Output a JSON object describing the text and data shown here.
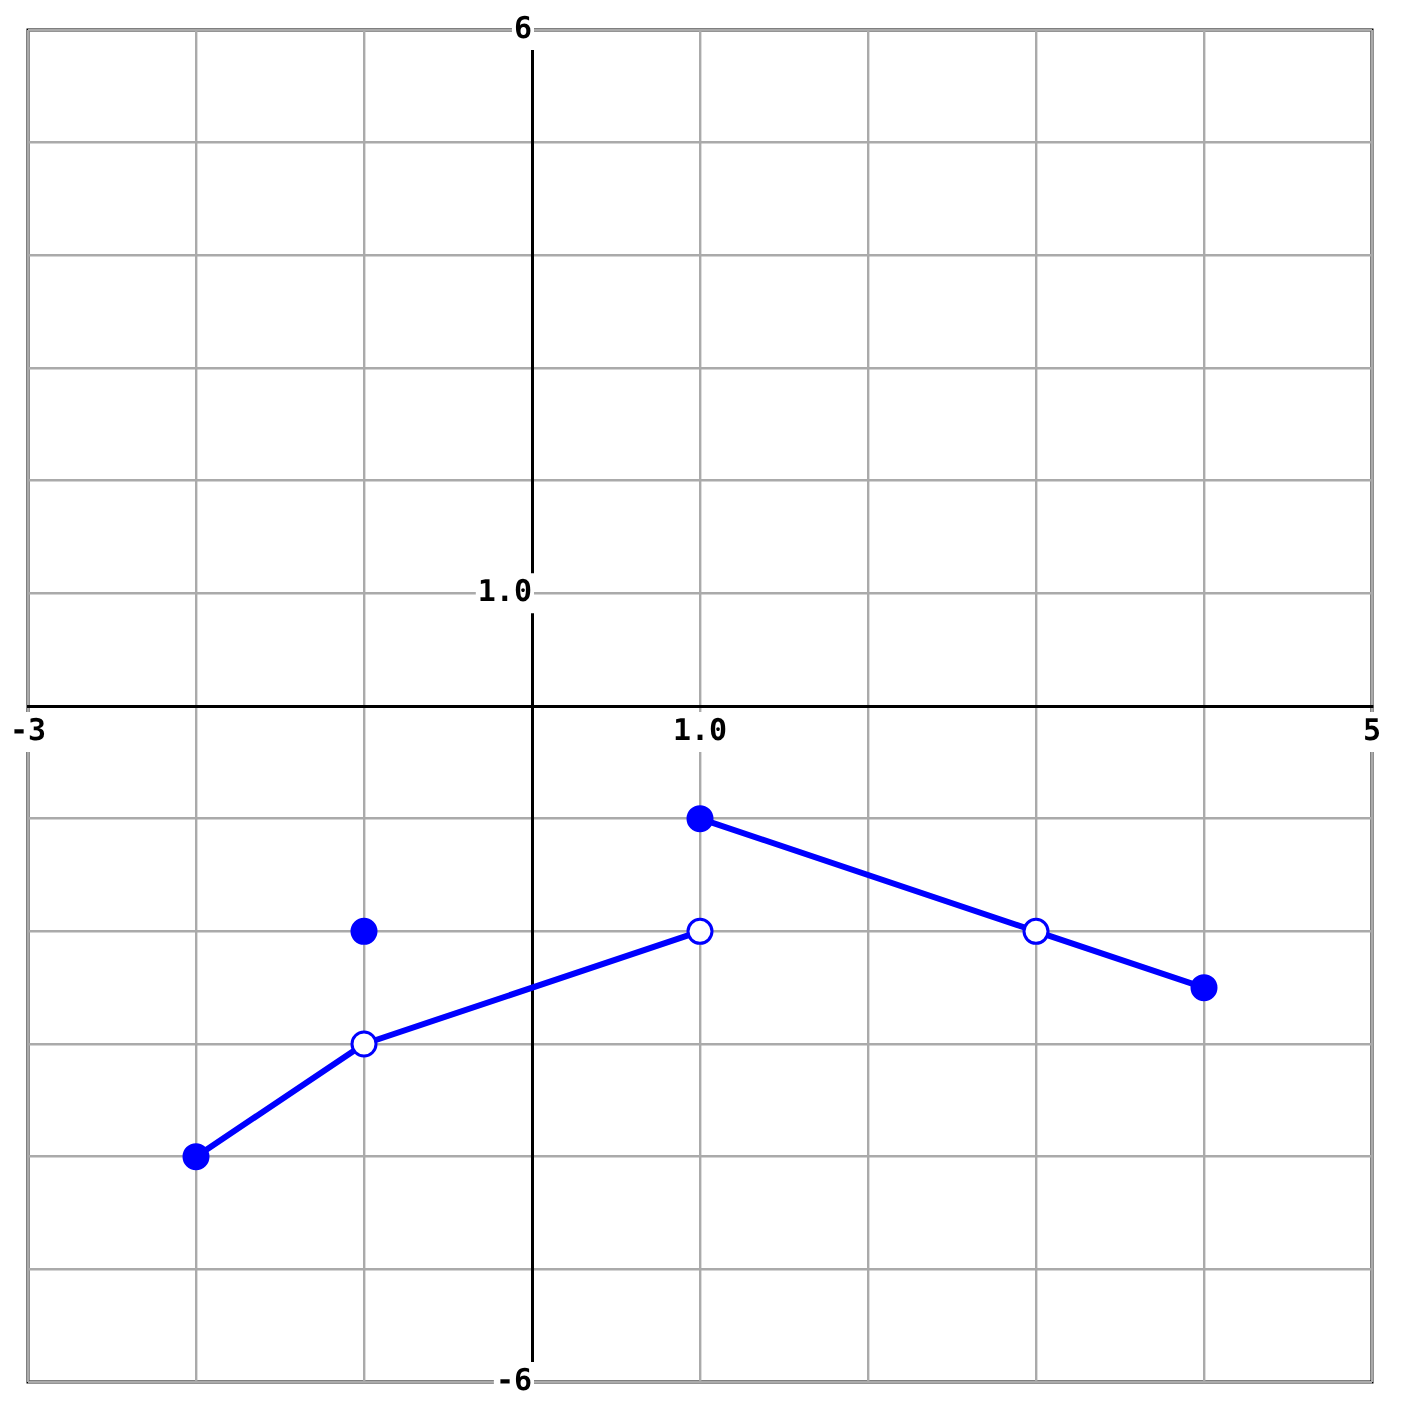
{
  "chart_data": {
    "type": "line",
    "xlim": [
      -3,
      5
    ],
    "ylim": [
      -6,
      6
    ],
    "xticks": [
      -3,
      {
        "value": -2,
        "label": null
      },
      {
        "value": -1,
        "label": null
      },
      {
        "value": 0,
        "label": null
      },
      {
        "value": 1,
        "label": "1.0"
      },
      {
        "value": 2,
        "label": null
      },
      {
        "value": 3,
        "label": null
      },
      {
        "value": 4,
        "label": null
      },
      5
    ],
    "yticks": [
      -6,
      {
        "value": -5,
        "label": null
      },
      {
        "value": -4,
        "label": null
      },
      {
        "value": -3,
        "label": null
      },
      {
        "value": -2,
        "label": null
      },
      {
        "value": -1,
        "label": null
      },
      {
        "value": 0,
        "label": null
      },
      {
        "value": 1,
        "label": "1.0"
      },
      {
        "value": 2,
        "label": null
      },
      {
        "value": 3,
        "label": null
      },
      {
        "value": 4,
        "label": null
      },
      {
        "value": 5,
        "label": null
      },
      6
    ],
    "grid": true,
    "legend": false,
    "line_style": "solid",
    "series": [
      {
        "marker": "none",
        "color": "#0000ff",
        "x": [
          -2,
          -1,
          1
        ],
        "values": [
          -4,
          -3,
          -2
        ]
      },
      {
        "marker": "none",
        "color": "#0000ff",
        "x": [
          1,
          3,
          4
        ],
        "values": [
          -1,
          -2,
          -2.5
        ]
      },
      {
        "type": "scatter",
        "marker": "circle",
        "color": "#0000ff",
        "x": [
          -2,
          -1,
          1,
          4
        ],
        "values": [
          -4,
          -2,
          -1,
          -2.5
        ]
      },
      {
        "type": "scatter",
        "marker": "circle",
        "color": "#ffffff",
        "x": [
          -1,
          1,
          3
        ],
        "values": [
          -3,
          -2,
          -2
        ]
      }
    ]
  }
}
